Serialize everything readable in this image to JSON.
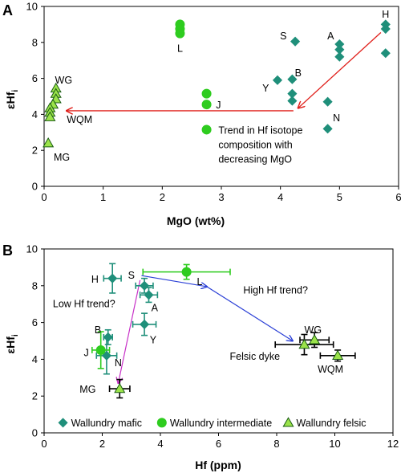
{
  "colors": {
    "mafic": "#1f8f7a",
    "intermediate": "#2ecc1f",
    "felsic_fill": "#9be34a",
    "trend_red": "#e0201b",
    "trend_purple": "#c832c8",
    "trend_blue": "#2a3fd6",
    "axis": "#000000"
  },
  "chart_data": [
    {
      "type": "scatter",
      "panel": "A",
      "xlabel": "MgO (wt%)",
      "ylabel": "εHf",
      "ylabel_sub": "i",
      "xlim": [
        0,
        6
      ],
      "ylim": [
        0,
        10
      ],
      "xticks": [
        0,
        1,
        2,
        3,
        4,
        5,
        6
      ],
      "yticks": [
        0,
        2,
        4,
        6,
        8,
        10
      ],
      "series": [
        {
          "marker": "diamond",
          "color": "#1f8f7a",
          "points": [
            [
              5.78,
              9.0
            ],
            [
              5.78,
              8.75
            ],
            [
              5.78,
              7.4
            ],
            [
              4.25,
              8.05
            ],
            [
              5.0,
              7.9
            ],
            [
              5.0,
              7.6
            ],
            [
              5.0,
              7.2
            ],
            [
              4.2,
              5.95
            ],
            [
              3.95,
              5.9
            ],
            [
              4.2,
              5.15
            ],
            [
              4.2,
              4.75
            ],
            [
              4.8,
              4.7
            ],
            [
              4.8,
              3.2
            ]
          ]
        },
        {
          "marker": "circle",
          "color": "#2ecc1f",
          "points": [
            [
              2.3,
              9.0
            ],
            [
              2.3,
              8.75
            ],
            [
              2.3,
              8.5
            ],
            [
              2.75,
              5.15
            ],
            [
              2.75,
              4.55
            ],
            [
              2.75,
              3.15
            ]
          ]
        },
        {
          "marker": "triangle",
          "color": "#9be34a",
          "points": [
            [
              0.2,
              5.45
            ],
            [
              0.2,
              5.15
            ],
            [
              0.2,
              4.85
            ],
            [
              0.15,
              4.55
            ],
            [
              0.1,
              4.35
            ],
            [
              0.1,
              4.1
            ],
            [
              0.1,
              3.85
            ],
            [
              0.07,
              2.4
            ]
          ]
        }
      ],
      "labels": [
        {
          "text": "H",
          "x": 5.78,
          "y": 9.55
        },
        {
          "text": "S",
          "x": 4.05,
          "y": 8.35
        },
        {
          "text": "A",
          "x": 4.85,
          "y": 8.35
        },
        {
          "text": "L",
          "x": 2.3,
          "y": 7.65
        },
        {
          "text": "B",
          "x": 4.3,
          "y": 6.3
        },
        {
          "text": "Y",
          "x": 3.75,
          "y": 5.45
        },
        {
          "text": "J",
          "x": 2.95,
          "y": 4.5
        },
        {
          "text": "N",
          "x": 4.95,
          "y": 3.8
        },
        {
          "text": "WG",
          "x": 0.33,
          "y": 5.9
        },
        {
          "text": "WQM",
          "x": 0.6,
          "y": 3.7
        },
        {
          "text": "MG",
          "x": 0.3,
          "y": 1.6
        }
      ],
      "annotation": [
        "Trend in Hf isotope",
        "composition with",
        "decreasing MgO"
      ],
      "arrows": [
        {
          "from": [
            5.7,
            8.55
          ],
          "to": [
            4.3,
            4.35
          ]
        },
        {
          "from": [
            4.22,
            4.2
          ],
          "to": [
            0.38,
            4.2
          ]
        }
      ]
    },
    {
      "type": "scatter",
      "panel": "B",
      "xlabel": "Hf (ppm)",
      "ylabel": "εHf",
      "ylabel_sub": "i",
      "xlim": [
        0,
        12
      ],
      "ylim": [
        0,
        10
      ],
      "xticks": [
        0,
        2,
        4,
        6,
        8,
        10,
        12
      ],
      "yticks": [
        0,
        2,
        4,
        6,
        8,
        10
      ],
      "series": [
        {
          "name": "Wallundry mafic",
          "marker": "diamond",
          "color": "#1f8f7a",
          "points": [
            {
              "label": "H",
              "x": 2.35,
              "y": 8.4,
              "xerr": 0.3,
              "yerr": 0.8
            },
            {
              "label": "S",
              "x": 3.45,
              "y": 8.0,
              "xerr": 0.3,
              "yerr": 0.4
            },
            {
              "label": "A",
              "x": 3.6,
              "y": 7.5,
              "xerr": 0.3,
              "yerr": 0.4
            },
            {
              "label": "Y",
              "x": 3.45,
              "y": 5.9,
              "xerr": 0.4,
              "yerr": 0.6
            },
            {
              "label": "B",
              "x": 2.2,
              "y": 5.2,
              "xerr": 0.15,
              "yerr": 0.4
            },
            {
              "label": "N",
              "x": 2.15,
              "y": 4.2,
              "xerr": 0.35,
              "yerr": 1.0
            }
          ]
        },
        {
          "name": "Wallundry intermediate",
          "marker": "circle",
          "color": "#2ecc1f",
          "points": [
            {
              "label": "L",
              "x": 4.9,
              "y": 8.75,
              "xerr": 1.5,
              "yerr": 0.4
            },
            {
              "label": "J",
              "x": 1.95,
              "y": 4.5,
              "xerr": 0.3,
              "yerr": 1.0
            }
          ]
        },
        {
          "name": "Wallundry felsic",
          "marker": "triangle",
          "color": "#9be34a",
          "points": [
            {
              "label": "WG",
              "x": 9.3,
              "y": 5.05,
              "xerr": 0.5,
              "yerr": 0.4
            },
            {
              "label": "Felsic dyke",
              "x": 8.95,
              "y": 4.8,
              "xerr": 1.0,
              "yerr": 0.55
            },
            {
              "label": "WQM",
              "x": 10.1,
              "y": 4.2,
              "xerr": 0.6,
              "yerr": 0.3
            },
            {
              "label": "MG",
              "x": 2.6,
              "y": 2.4,
              "xerr": 0.35,
              "yerr": 0.5
            }
          ]
        }
      ],
      "labels": [
        {
          "text": "H",
          "x": 1.75,
          "y": 8.35
        },
        {
          "text": "S",
          "x": 3.0,
          "y": 8.55
        },
        {
          "text": "L",
          "x": 5.35,
          "y": 8.2
        },
        {
          "text": "A",
          "x": 3.8,
          "y": 6.8
        },
        {
          "text": "Y",
          "x": 3.75,
          "y": 5.05
        },
        {
          "text": "B",
          "x": 1.85,
          "y": 5.6
        },
        {
          "text": "J",
          "x": 1.45,
          "y": 4.35
        },
        {
          "text": "N",
          "x": 2.55,
          "y": 3.8
        },
        {
          "text": "MG",
          "x": 1.5,
          "y": 2.35
        },
        {
          "text": "WG",
          "x": 9.25,
          "y": 5.6
        },
        {
          "text": "Felsic dyke",
          "x": 7.25,
          "y": 4.15
        },
        {
          "text": "WQM",
          "x": 9.85,
          "y": 3.45
        }
      ],
      "trend_labels": [
        {
          "text": "Low Hf trend?",
          "x": 0.3,
          "y": 7.0,
          "color": "#c832c8"
        },
        {
          "text": "High Hf trend?",
          "x": 6.85,
          "y": 7.75,
          "color": "#2a3fd6"
        }
      ],
      "arrows": [
        {
          "from": [
            3.3,
            8.3
          ],
          "to": [
            2.55,
            2.7
          ],
          "color": "#c832c8"
        },
        {
          "from": [
            3.35,
            8.55
          ],
          "to": [
            5.6,
            7.95
          ],
          "color": "#2a3fd6"
        },
        {
          "from": [
            5.6,
            7.95
          ],
          "to": [
            8.55,
            5.0
          ],
          "color": "#2a3fd6"
        }
      ],
      "legend": [
        {
          "label": "Wallundry mafic",
          "marker": "diamond",
          "color": "#1f8f7a"
        },
        {
          "label": "Wallundry intermediate",
          "marker": "circle",
          "color": "#2ecc1f"
        },
        {
          "label": "Wallundry felsic",
          "marker": "triangle",
          "color": "#9be34a"
        }
      ]
    }
  ]
}
